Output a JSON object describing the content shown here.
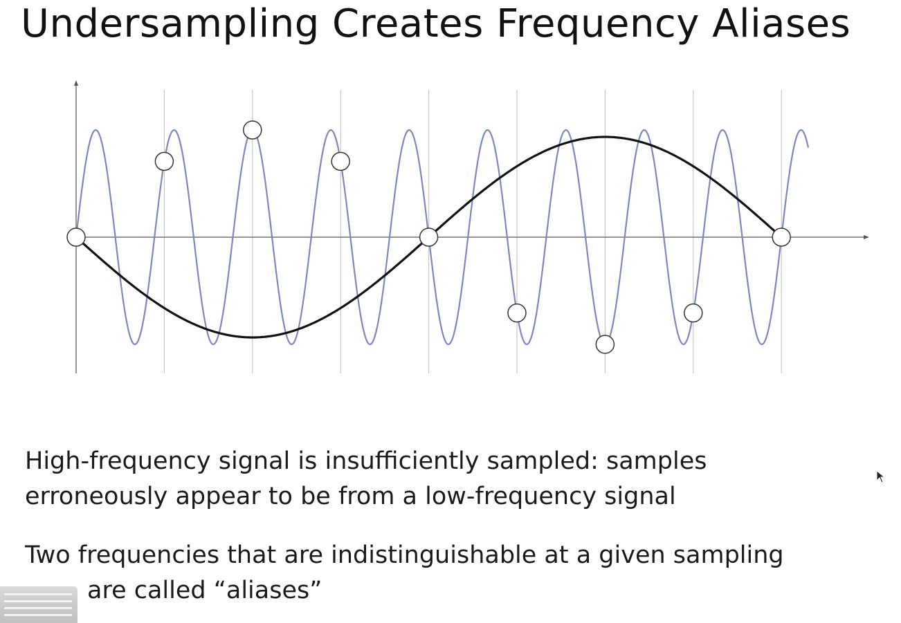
{
  "slide": {
    "title": "Undersampling Creates Frequency Aliases",
    "paragraph1": {
      "line1": "High-frequency signal is insufficiently sampled: samples",
      "line2": "erroneously appear to be from a low-frequency signal"
    },
    "paragraph2": {
      "line1": "Two frequencies that are indistinguishable at a given sampling",
      "line2": "are called “aliases”"
    }
  },
  "colors": {
    "high_freq_signal": "#7b86c2",
    "low_freq_signal": "#111111",
    "axis": "#555555",
    "grid": "#bdbdbd",
    "sample_marker_fill": "#ffffff"
  },
  "icons": {
    "pointer": "mouse-cursor-icon"
  },
  "chart_data": {
    "type": "line",
    "title": "",
    "xlabel": "",
    "ylabel": "",
    "sample_count": 9,
    "high_frequency_cycles": 8.33,
    "low_frequency_cycles": 0.67,
    "ylim": [
      -1,
      1
    ]
  }
}
